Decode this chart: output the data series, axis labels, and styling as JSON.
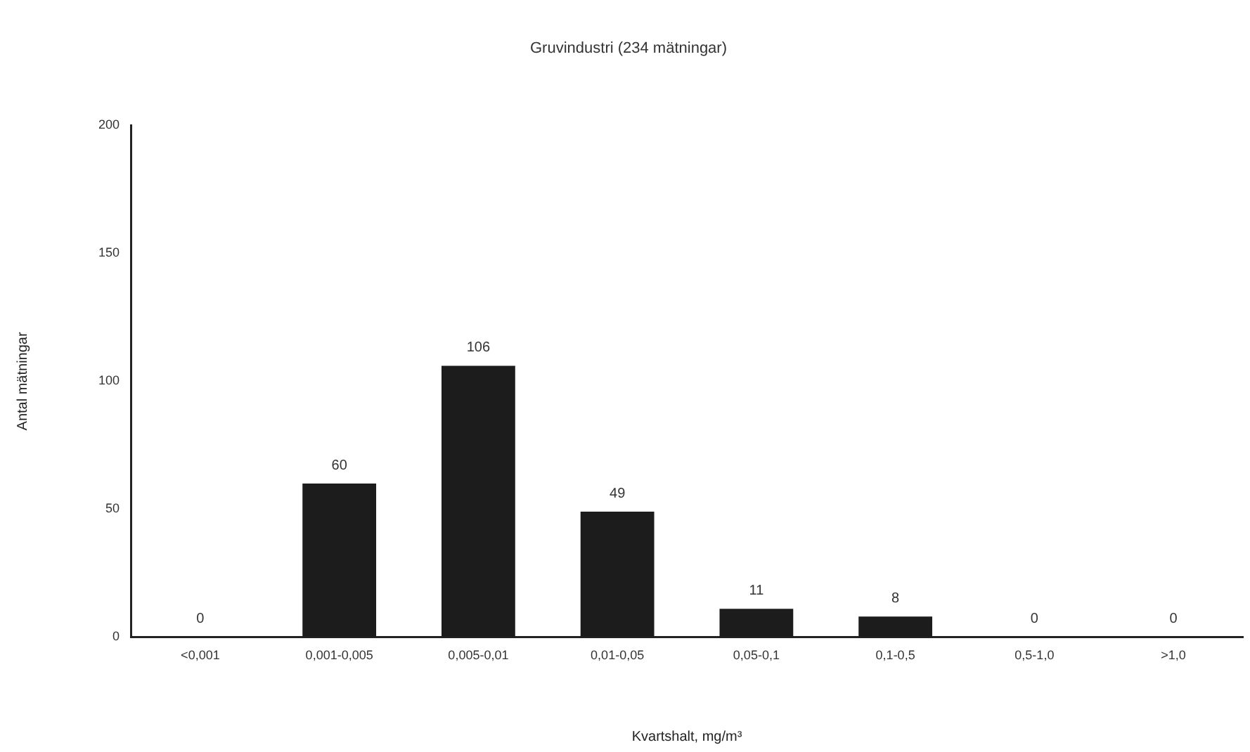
{
  "chart_data": {
    "type": "bar",
    "title": "Gruvindustri (234 mätningar)",
    "xlabel": "Kvartshalt, mg/m³",
    "ylabel": "Antal mätningar",
    "categories": [
      "<0,001",
      "0,001-0,005",
      "0,005-0,01",
      "0,01-0,05",
      "0,05-0,1",
      "0,1-0,5",
      "0,5-1,0",
      ">1,0"
    ],
    "values": [
      0,
      60,
      106,
      49,
      11,
      8,
      0,
      0
    ],
    "color": "#1c1c1c",
    "ylim": [
      0,
      200
    ],
    "yticks": [
      0,
      50,
      100,
      150,
      200
    ],
    "grid": false,
    "data_labels": true
  }
}
